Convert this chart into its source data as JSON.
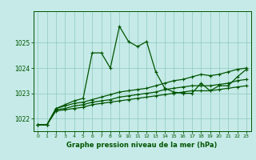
{
  "hours": [
    0,
    1,
    2,
    3,
    4,
    5,
    6,
    7,
    8,
    9,
    10,
    11,
    12,
    13,
    14,
    15,
    16,
    17,
    18,
    19,
    20,
    21,
    22,
    23
  ],
  "line_main": [
    1021.75,
    1021.75,
    1022.4,
    1022.55,
    1022.7,
    1022.8,
    1024.6,
    1024.6,
    1024.0,
    1025.65,
    1025.05,
    1024.85,
    1025.05,
    1023.85,
    1023.2,
    1023.05,
    1023.0,
    1023.0,
    1023.4,
    1023.1,
    1023.3,
    1023.3,
    1023.65,
    1023.95
  ],
  "line_bot": [
    1021.75,
    1021.75,
    1022.3,
    1022.35,
    1022.4,
    1022.45,
    1022.55,
    1022.6,
    1022.65,
    1022.7,
    1022.75,
    1022.8,
    1022.85,
    1022.9,
    1022.95,
    1023.0,
    1023.05,
    1023.1,
    1023.1,
    1023.1,
    1023.15,
    1023.2,
    1023.25,
    1023.3
  ],
  "line_mid": [
    1021.75,
    1021.75,
    1022.35,
    1022.4,
    1022.5,
    1022.55,
    1022.65,
    1022.7,
    1022.75,
    1022.85,
    1022.9,
    1022.95,
    1023.0,
    1023.05,
    1023.15,
    1023.2,
    1023.25,
    1023.3,
    1023.3,
    1023.3,
    1023.35,
    1023.4,
    1023.5,
    1023.55
  ],
  "line_top": [
    1021.75,
    1021.75,
    1022.4,
    1022.5,
    1022.6,
    1022.65,
    1022.75,
    1022.85,
    1022.95,
    1023.05,
    1023.1,
    1023.15,
    1023.2,
    1023.3,
    1023.4,
    1023.5,
    1023.55,
    1023.65,
    1023.75,
    1023.7,
    1023.75,
    1023.85,
    1023.95,
    1024.0
  ],
  "ylim": [
    1021.5,
    1026.25
  ],
  "yticks": [
    1022,
    1023,
    1024,
    1025
  ],
  "xticks": [
    0,
    1,
    2,
    3,
    4,
    5,
    6,
    7,
    8,
    9,
    10,
    11,
    12,
    13,
    14,
    15,
    16,
    17,
    18,
    19,
    20,
    21,
    22,
    23
  ],
  "xlabel": "Graphe pression niveau de la mer (hPa)",
  "bg_color": "#c5eae7",
  "line_color": "#005500",
  "grid_color": "#8dc8be",
  "marker": "+",
  "marker_size": 3.0,
  "linewidth": 0.9
}
